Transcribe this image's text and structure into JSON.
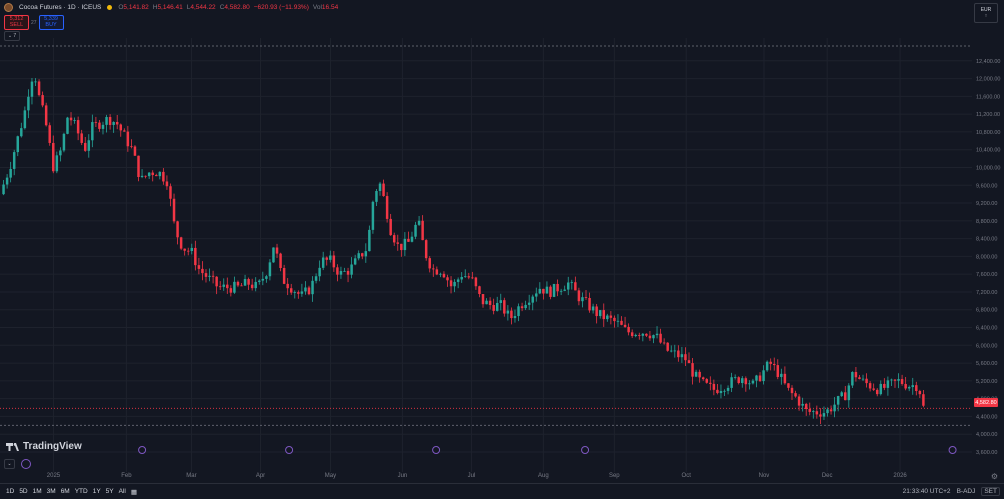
{
  "header": {
    "symbol": "Cocoa Futures · 1D · ICEUS",
    "ohlc": [
      {
        "label": "O",
        "value": "5,141.82"
      },
      {
        "label": "H",
        "value": "5,146.41"
      },
      {
        "label": "L",
        "value": "4,544.22"
      },
      {
        "label": "C",
        "value": "4,582.80"
      },
      {
        "label": "",
        "value": "−620.93 (−11.93%)"
      }
    ],
    "vol_label": "Vol",
    "vol_value": "16.54"
  },
  "trade": {
    "sell_price": "5,312",
    "sell_label": "SELL",
    "buy_price": "5,339",
    "buy_label": "BUY",
    "spread": "27"
  },
  "collapse_label": "⌄ 7",
  "yaxis_top": {
    "l1": "EUR",
    "l2": "↑"
  },
  "last_price": "4,582.80",
  "brand": "TradingView",
  "toolbar": {
    "ranges": [
      "1D",
      "5D",
      "1M",
      "3M",
      "6M",
      "YTD",
      "1Y",
      "5Y",
      "All"
    ],
    "time": "21:33:40 UTC+2",
    "adj": "B-ADJ",
    "set": "SET"
  },
  "colors": {
    "up": "#26a69a",
    "down": "#f23645",
    "bg": "#131722",
    "grid": "#1e222d",
    "text": "#787b86"
  },
  "chart_data": {
    "type": "candlestick",
    "title": "Cocoa Futures · 1D · ICEUS",
    "xlabel": "",
    "ylabel": "",
    "ylim": [
      3600,
      12800
    ],
    "y_ticks": [
      12400,
      12000,
      11600,
      11200,
      10800,
      10400,
      10000,
      9600,
      9200,
      8800,
      8400,
      8000,
      7600,
      7200,
      6800,
      6400,
      6000,
      5600,
      5200,
      4800,
      4400,
      4000,
      3600
    ],
    "x_ticks": [
      {
        "label": "2025",
        "x": 0.055
      },
      {
        "label": "Feb",
        "x": 0.13
      },
      {
        "label": "Mar",
        "x": 0.197
      },
      {
        "label": "Apr",
        "x": 0.268
      },
      {
        "label": "May",
        "x": 0.34
      },
      {
        "label": "Jun",
        "x": 0.414
      },
      {
        "label": "Jul",
        "x": 0.485
      },
      {
        "label": "Aug",
        "x": 0.559
      },
      {
        "label": "Sep",
        "x": 0.632
      },
      {
        "label": "Oct",
        "x": 0.706
      },
      {
        "label": "Nov",
        "x": 0.786
      },
      {
        "label": "Dec",
        "x": 0.851
      },
      {
        "label": "2026",
        "x": 0.926
      }
    ],
    "anchors": [
      [
        0.0,
        9400
      ],
      [
        0.01,
        10000
      ],
      [
        0.02,
        10800
      ],
      [
        0.025,
        11200
      ],
      [
        0.03,
        11800
      ],
      [
        0.035,
        12200
      ],
      [
        0.04,
        11600
      ],
      [
        0.047,
        11000
      ],
      [
        0.055,
        10000
      ],
      [
        0.063,
        10400
      ],
      [
        0.07,
        11200
      ],
      [
        0.078,
        10900
      ],
      [
        0.087,
        10400
      ],
      [
        0.095,
        10900
      ],
      [
        0.103,
        11000
      ],
      [
        0.112,
        11100
      ],
      [
        0.12,
        11000
      ],
      [
        0.128,
        10700
      ],
      [
        0.136,
        10400
      ],
      [
        0.145,
        9700
      ],
      [
        0.154,
        9900
      ],
      [
        0.163,
        9900
      ],
      [
        0.172,
        9700
      ],
      [
        0.18,
        8600
      ],
      [
        0.188,
        8200
      ],
      [
        0.197,
        8100
      ],
      [
        0.205,
        7700
      ],
      [
        0.215,
        7500
      ],
      [
        0.225,
        7300
      ],
      [
        0.235,
        7300
      ],
      [
        0.245,
        7300
      ],
      [
        0.255,
        7400
      ],
      [
        0.265,
        7300
      ],
      [
        0.275,
        7700
      ],
      [
        0.282,
        8300
      ],
      [
        0.29,
        7500
      ],
      [
        0.3,
        7300
      ],
      [
        0.31,
        7100
      ],
      [
        0.32,
        7300
      ],
      [
        0.33,
        7900
      ],
      [
        0.34,
        7900
      ],
      [
        0.35,
        7600
      ],
      [
        0.36,
        7700
      ],
      [
        0.37,
        8000
      ],
      [
        0.378,
        8200
      ],
      [
        0.384,
        9300
      ],
      [
        0.39,
        9700
      ],
      [
        0.396,
        9200
      ],
      [
        0.402,
        8600
      ],
      [
        0.41,
        8200
      ],
      [
        0.42,
        8300
      ],
      [
        0.43,
        8800
      ],
      [
        0.437,
        8100
      ],
      [
        0.445,
        7700
      ],
      [
        0.455,
        7700
      ],
      [
        0.465,
        7300
      ],
      [
        0.475,
        7600
      ],
      [
        0.485,
        7500
      ],
      [
        0.495,
        7000
      ],
      [
        0.505,
        6900
      ],
      [
        0.515,
        6900
      ],
      [
        0.525,
        6600
      ],
      [
        0.535,
        6900
      ],
      [
        0.545,
        7100
      ],
      [
        0.555,
        7300
      ],
      [
        0.565,
        7200
      ],
      [
        0.575,
        7300
      ],
      [
        0.585,
        7400
      ],
      [
        0.595,
        7100
      ],
      [
        0.605,
        6900
      ],
      [
        0.615,
        6700
      ],
      [
        0.625,
        6600
      ],
      [
        0.635,
        6500
      ],
      [
        0.645,
        6300
      ],
      [
        0.655,
        6300
      ],
      [
        0.665,
        6300
      ],
      [
        0.675,
        6200
      ],
      [
        0.685,
        5900
      ],
      [
        0.695,
        5800
      ],
      [
        0.705,
        5700
      ],
      [
        0.715,
        5300
      ],
      [
        0.725,
        5100
      ],
      [
        0.735,
        5000
      ],
      [
        0.745,
        5100
      ],
      [
        0.755,
        5200
      ],
      [
        0.765,
        5300
      ],
      [
        0.775,
        5100
      ],
      [
        0.785,
        5400
      ],
      [
        0.792,
        5600
      ],
      [
        0.8,
        5400
      ],
      [
        0.81,
        5000
      ],
      [
        0.82,
        4800
      ],
      [
        0.83,
        4500
      ],
      [
        0.84,
        4500
      ],
      [
        0.85,
        4500
      ],
      [
        0.86,
        4700
      ],
      [
        0.87,
        4900
      ],
      [
        0.878,
        5400
      ],
      [
        0.886,
        5200
      ],
      [
        0.895,
        5100
      ],
      [
        0.905,
        5000
      ],
      [
        0.915,
        5100
      ],
      [
        0.925,
        5200
      ],
      [
        0.935,
        5100
      ],
      [
        0.945,
        5100
      ],
      [
        0.95,
        4600
      ]
    ]
  }
}
